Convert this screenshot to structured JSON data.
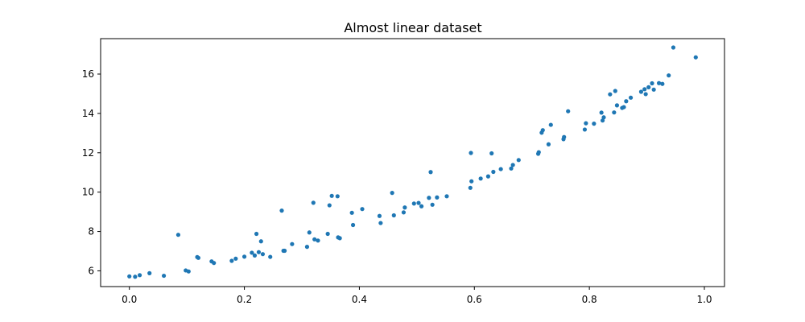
{
  "chart_data": {
    "type": "scatter",
    "title": "Almost linear dataset",
    "xlabel": "",
    "ylabel": "",
    "xlim": [
      -0.05,
      1.035
    ],
    "ylim": [
      5.2,
      17.8
    ],
    "xticks": [
      0.0,
      0.2,
      0.4,
      0.6,
      0.8,
      1.0
    ],
    "xtick_labels": [
      "0.0",
      "0.2",
      "0.4",
      "0.6",
      "0.8",
      "1.0"
    ],
    "yticks": [
      6,
      8,
      10,
      12,
      14,
      16
    ],
    "ytick_labels": [
      "6",
      "8",
      "10",
      "12",
      "14",
      "16"
    ],
    "grid": false,
    "marker_color": "#1f77b4",
    "points": [
      [
        0.0,
        5.72
      ],
      [
        0.01,
        5.7
      ],
      [
        0.018,
        5.78
      ],
      [
        0.035,
        5.88
      ],
      [
        0.06,
        5.75
      ],
      [
        0.085,
        7.83
      ],
      [
        0.098,
        6.02
      ],
      [
        0.103,
        5.97
      ],
      [
        0.118,
        6.7
      ],
      [
        0.12,
        6.66
      ],
      [
        0.143,
        6.48
      ],
      [
        0.147,
        6.4
      ],
      [
        0.178,
        6.51
      ],
      [
        0.185,
        6.62
      ],
      [
        0.2,
        6.72
      ],
      [
        0.213,
        6.92
      ],
      [
        0.218,
        6.78
      ],
      [
        0.221,
        7.88
      ],
      [
        0.225,
        6.95
      ],
      [
        0.229,
        7.5
      ],
      [
        0.232,
        6.85
      ],
      [
        0.245,
        6.71
      ],
      [
        0.265,
        9.06
      ],
      [
        0.268,
        7.02
      ],
      [
        0.27,
        7.02
      ],
      [
        0.283,
        7.36
      ],
      [
        0.309,
        7.22
      ],
      [
        0.313,
        7.95
      ],
      [
        0.32,
        9.46
      ],
      [
        0.322,
        7.6
      ],
      [
        0.328,
        7.54
      ],
      [
        0.345,
        7.88
      ],
      [
        0.348,
        9.33
      ],
      [
        0.352,
        9.81
      ],
      [
        0.362,
        9.79
      ],
      [
        0.363,
        7.7
      ],
      [
        0.366,
        7.66
      ],
      [
        0.387,
        8.95
      ],
      [
        0.389,
        8.33
      ],
      [
        0.405,
        9.14
      ],
      [
        0.435,
        8.79
      ],
      [
        0.437,
        8.43
      ],
      [
        0.457,
        9.96
      ],
      [
        0.46,
        8.82
      ],
      [
        0.477,
        8.97
      ],
      [
        0.479,
        9.22
      ],
      [
        0.495,
        9.42
      ],
      [
        0.503,
        9.45
      ],
      [
        0.508,
        9.28
      ],
      [
        0.521,
        9.71
      ],
      [
        0.524,
        11.02
      ],
      [
        0.527,
        9.36
      ],
      [
        0.535,
        9.73
      ],
      [
        0.552,
        9.79
      ],
      [
        0.593,
        10.22
      ],
      [
        0.594,
        11.99
      ],
      [
        0.595,
        10.55
      ],
      [
        0.611,
        10.69
      ],
      [
        0.624,
        10.8
      ],
      [
        0.63,
        11.97
      ],
      [
        0.633,
        11.03
      ],
      [
        0.646,
        11.17
      ],
      [
        0.664,
        11.2
      ],
      [
        0.667,
        11.38
      ],
      [
        0.677,
        11.63
      ],
      [
        0.711,
        11.95
      ],
      [
        0.712,
        12.03
      ],
      [
        0.717,
        13.02
      ],
      [
        0.719,
        13.15
      ],
      [
        0.729,
        12.43
      ],
      [
        0.733,
        13.42
      ],
      [
        0.755,
        12.69
      ],
      [
        0.756,
        12.8
      ],
      [
        0.763,
        14.11
      ],
      [
        0.792,
        13.18
      ],
      [
        0.794,
        13.5
      ],
      [
        0.808,
        13.48
      ],
      [
        0.821,
        14.04
      ],
      [
        0.823,
        13.64
      ],
      [
        0.825,
        13.8
      ],
      [
        0.836,
        14.97
      ],
      [
        0.843,
        14.05
      ],
      [
        0.845,
        15.14
      ],
      [
        0.848,
        14.41
      ],
      [
        0.857,
        14.28
      ],
      [
        0.86,
        14.32
      ],
      [
        0.864,
        14.62
      ],
      [
        0.872,
        14.8
      ],
      [
        0.89,
        15.1
      ],
      [
        0.896,
        15.23
      ],
      [
        0.898,
        14.98
      ],
      [
        0.903,
        15.33
      ],
      [
        0.909,
        15.53
      ],
      [
        0.912,
        15.21
      ],
      [
        0.921,
        15.54
      ],
      [
        0.927,
        15.5
      ],
      [
        0.938,
        15.93
      ],
      [
        0.946,
        17.35
      ],
      [
        0.985,
        16.85
      ]
    ]
  }
}
